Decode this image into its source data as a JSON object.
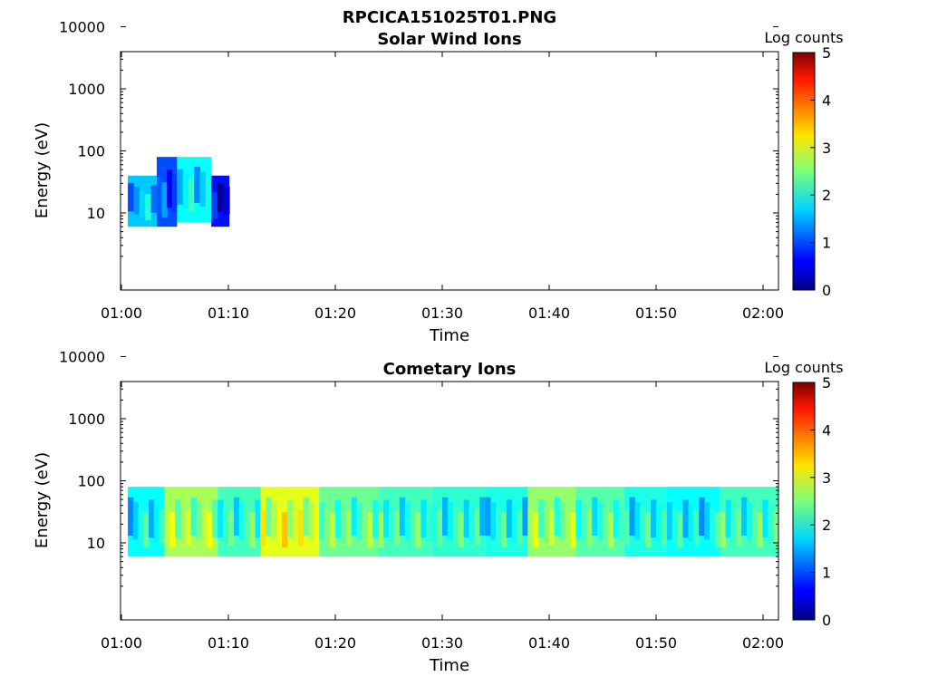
{
  "figure": {
    "title": "RPCICA151025T01.PNG"
  },
  "chart_data": [
    {
      "type": "heatmap",
      "title": "Solar Wind Ions",
      "xlabel": "Time",
      "ylabel": "Energy (eV)",
      "x_ticks": [
        "01:00",
        "01:10",
        "01:20",
        "01:30",
        "01:40",
        "01:50",
        "02:00"
      ],
      "y_ticks": [
        "10",
        "100",
        "1000",
        "10000"
      ],
      "y_scale": "log",
      "colorbar": {
        "label": "Log counts",
        "range": [
          0,
          5
        ],
        "ticks": [
          "0",
          "1",
          "2",
          "3",
          "4",
          "5"
        ]
      },
      "segments": [
        {
          "t0": 0.6,
          "t1": 3.3,
          "emin": 6,
          "emax": 40,
          "level": 1.6
        },
        {
          "t0": 3.3,
          "t1": 5.2,
          "emin": 6,
          "emax": 80,
          "level": 1.0
        },
        {
          "t0": 5.2,
          "t1": 8.4,
          "emin": 7,
          "emax": 80,
          "level": 1.9
        },
        {
          "t0": 8.4,
          "t1": 10.1,
          "emin": 6,
          "emax": 40,
          "level": 0.7
        }
      ]
    },
    {
      "type": "heatmap",
      "title": "Cometary Ions",
      "xlabel": "Time",
      "ylabel": "Energy (eV)",
      "x_ticks": [
        "01:00",
        "01:10",
        "01:20",
        "01:30",
        "01:40",
        "01:50",
        "02:00"
      ],
      "y_ticks": [
        "10",
        "100",
        "1000",
        "10000"
      ],
      "y_scale": "log",
      "colorbar": {
        "label": "Log counts",
        "range": [
          0,
          5
        ],
        "ticks": [
          "0",
          "1",
          "2",
          "3",
          "4",
          "5"
        ]
      },
      "segments": [
        {
          "t0": 0.6,
          "t1": 4.0,
          "emin": 6,
          "emax": 80,
          "level": 1.9
        },
        {
          "t0": 4.0,
          "t1": 9.0,
          "emin": 6,
          "emax": 80,
          "level": 2.7
        },
        {
          "t0": 9.0,
          "t1": 13.0,
          "emin": 6,
          "emax": 80,
          "level": 2.2
        },
        {
          "t0": 13.0,
          "t1": 18.5,
          "emin": 6,
          "emax": 80,
          "level": 3.0
        },
        {
          "t0": 18.5,
          "t1": 24.0,
          "emin": 6,
          "emax": 80,
          "level": 2.4
        },
        {
          "t0": 24.0,
          "t1": 29.0,
          "emin": 6,
          "emax": 80,
          "level": 2.2
        },
        {
          "t0": 29.0,
          "t1": 34.0,
          "emin": 6,
          "emax": 80,
          "level": 2.1
        },
        {
          "t0": 34.0,
          "t1": 38.0,
          "emin": 6,
          "emax": 80,
          "level": 2.0
        },
        {
          "t0": 38.0,
          "t1": 42.5,
          "emin": 6,
          "emax": 80,
          "level": 2.6
        },
        {
          "t0": 42.5,
          "t1": 47.0,
          "emin": 6,
          "emax": 80,
          "level": 2.3
        },
        {
          "t0": 47.0,
          "t1": 51.0,
          "emin": 6,
          "emax": 80,
          "level": 2.0
        },
        {
          "t0": 51.0,
          "t1": 56.0,
          "emin": 6,
          "emax": 80,
          "level": 1.9
        },
        {
          "t0": 56.0,
          "t1": 61.5,
          "emin": 6,
          "emax": 80,
          "level": 2.2
        }
      ]
    }
  ]
}
